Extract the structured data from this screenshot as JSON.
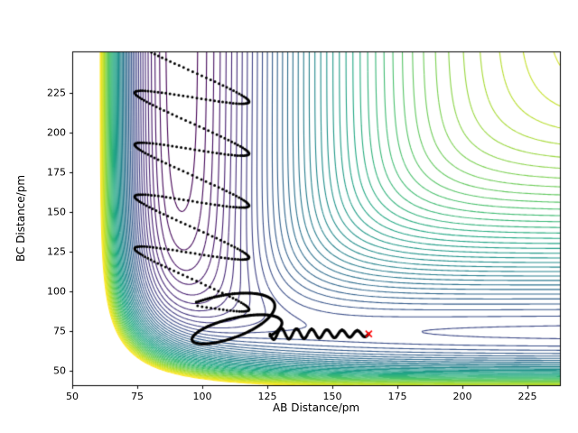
{
  "chart_data": {
    "type": "contour",
    "title": "",
    "xlabel": "AB Distance/pm",
    "ylabel": "BC Distance/pm",
    "xlim": [
      50,
      237.5
    ],
    "ylim": [
      41,
      251
    ],
    "xticks": [
      50,
      75,
      100,
      125,
      150,
      175,
      200,
      225
    ],
    "yticks": [
      50,
      75,
      100,
      125,
      150,
      175,
      200,
      225
    ],
    "grid": false,
    "colormap": "viridis",
    "colormap_stops": [
      [
        0.0,
        68,
        1,
        84
      ],
      [
        0.1,
        72,
        36,
        117
      ],
      [
        0.2,
        65,
        68,
        135
      ],
      [
        0.3,
        53,
        95,
        141
      ],
      [
        0.4,
        42,
        120,
        142
      ],
      [
        0.5,
        33,
        145,
        140
      ],
      [
        0.6,
        34,
        168,
        132
      ],
      [
        0.7,
        68,
        191,
        112
      ],
      [
        0.8,
        122,
        209,
        81
      ],
      [
        0.9,
        189,
        223,
        38
      ],
      [
        1.0,
        253,
        231,
        37
      ]
    ],
    "contour_levels": {
      "min": -6.0,
      "max": -0.15,
      "count": 46
    },
    "contour_line_width": 1.1,
    "potential": {
      "model": "LEPS collinear A-B-C (rAC = rAB + rBC), energies in eV, distances in pm",
      "pairs": {
        "AB": {
          "D_eV": 6.12,
          "beta_per_pm": 0.02219,
          "re_pm": 91.7,
          "sato": 0.15
        },
        "BC": {
          "D_eV": 4.746,
          "beta_per_pm": 0.019747,
          "re_pm": 74.1,
          "sato": 0.15
        },
        "AC": {
          "D_eV": 6.12,
          "beta_per_pm": 0.02219,
          "re_pm": 91.7,
          "sato": 0.15
        }
      }
    },
    "trajectory": {
      "color": "#000000",
      "start_marker": {
        "symbol": "x",
        "color": "#ff0000",
        "ab": 164,
        "bc": 73.3,
        "size": 3.5
      },
      "phases": [
        {
          "type": "approach",
          "ab_from": 164,
          "ab_to": 126,
          "bc_center": 73.3,
          "amp_from": 1.8,
          "amp_to": 3.6,
          "periods": 6.5,
          "phase0": 3.1416,
          "step": 0.05,
          "dot_radius": 1.7
        },
        {
          "type": "loop",
          "cx_from": 118,
          "cx_to": 106,
          "cy_from": 73,
          "cy_to": 85,
          "rx_from": 13,
          "rx_to": 21,
          "ry_from": 6,
          "ry_to": 13,
          "shear": 0.45,
          "phi": -0.9,
          "turns": 1.46,
          "step": 0.04,
          "dot_radius": 1.7
        },
        {
          "type": "exit",
          "ab_center": 96,
          "amp": 22,
          "theta0": 0.1,
          "bc_from": 92,
          "slope": 5.2,
          "recoil": 0.5,
          "theta_end": 29,
          "step": 0.08,
          "dot_radius": 1.5
        }
      ]
    }
  }
}
